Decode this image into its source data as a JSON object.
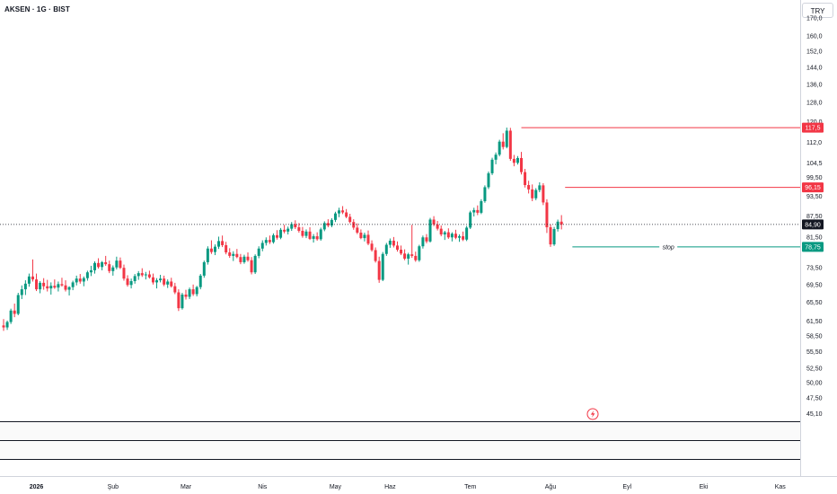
{
  "header": {
    "symbol_title": "AKSEN · 1G · BIST",
    "currency": "TRY"
  },
  "chart_data": {
    "type": "candlestick",
    "y_scale": "log",
    "ylim": [
      44.0,
      176.0
    ],
    "y_ticks": [
      "170,0",
      "160,0",
      "152,0",
      "144,0",
      "136,0",
      "128,0",
      "120,0",
      "112,0",
      "104,5",
      "99,50",
      "93,50",
      "87,50",
      "81,50",
      "73,50",
      "69,50",
      "65,50",
      "61,50",
      "58,50",
      "55,50",
      "52,50",
      "50,00",
      "47,50",
      "45,10"
    ],
    "x_ticks": [
      {
        "label": "2026",
        "index": 9
      },
      {
        "label": "Şub",
        "index": 30
      },
      {
        "label": "Mar",
        "index": 50
      },
      {
        "label": "Nis",
        "index": 71
      },
      {
        "label": "May",
        "index": 91
      },
      {
        "label": "Haz",
        "index": 106
      },
      {
        "label": "Tem",
        "index": 128
      },
      {
        "label": "Ağu",
        "index": 150
      },
      {
        "label": "Eyl",
        "index": 171
      },
      {
        "label": "Eki",
        "index": 192
      },
      {
        "label": "Kas",
        "index": 213
      }
    ],
    "current_price": {
      "label": "84,90",
      "value": 84.9
    },
    "levels": [
      {
        "label": "117,5",
        "value": 117.5,
        "color": "#f23645",
        "start_index": 142
      },
      {
        "label": "96,15",
        "value": 96.15,
        "color": "#f23645",
        "start_index": 154
      },
      {
        "label": "78,75",
        "value": 78.75,
        "color": "#089981",
        "start_index": 156,
        "text": "stop"
      }
    ],
    "up_color": "#089981",
    "down_color": "#f23645",
    "candles": [
      [
        60.5,
        61.8,
        59.4,
        60.1
      ],
      [
        60.1,
        61.5,
        59.6,
        61.2
      ],
      [
        61.2,
        64.0,
        60.8,
        63.6
      ],
      [
        63.6,
        65.1,
        62.2,
        62.9
      ],
      [
        62.9,
        67.5,
        62.6,
        67.0
      ],
      [
        67.0,
        69.2,
        66.1,
        68.3
      ],
      [
        68.3,
        70.4,
        67.0,
        69.6
      ],
      [
        69.6,
        72.0,
        68.9,
        71.3
      ],
      [
        71.3,
        75.5,
        70.1,
        70.6
      ],
      [
        70.6,
        72.0,
        67.9,
        68.3
      ],
      [
        68.3,
        70.2,
        67.4,
        69.8
      ],
      [
        69.8,
        70.9,
        68.2,
        69.0
      ],
      [
        69.0,
        70.5,
        67.8,
        68.5
      ],
      [
        68.5,
        69.9,
        67.1,
        69.1
      ],
      [
        69.1,
        70.6,
        68.4,
        68.7
      ],
      [
        68.7,
        70.1,
        67.8,
        69.5
      ],
      [
        69.5,
        71.0,
        68.9,
        69.2
      ],
      [
        69.2,
        70.4,
        67.8,
        68.2
      ],
      [
        68.2,
        69.0,
        66.9,
        68.8
      ],
      [
        68.8,
        70.3,
        68.1,
        69.9
      ],
      [
        69.9,
        71.5,
        69.2,
        70.8
      ],
      [
        70.8,
        71.9,
        69.6,
        70.1
      ],
      [
        70.1,
        71.3,
        69.0,
        70.9
      ],
      [
        70.9,
        72.7,
        70.3,
        72.3
      ],
      [
        72.3,
        73.9,
        71.4,
        72.8
      ],
      [
        72.8,
        75.0,
        72.0,
        74.6
      ],
      [
        74.6,
        75.8,
        73.2,
        73.6
      ],
      [
        73.6,
        75.1,
        72.8,
        74.8
      ],
      [
        74.8,
        76.4,
        73.9,
        74.3
      ],
      [
        74.3,
        75.2,
        72.1,
        72.6
      ],
      [
        72.6,
        74.0,
        71.5,
        73.5
      ],
      [
        73.5,
        76.2,
        73.0,
        75.2
      ],
      [
        75.2,
        76.0,
        73.1,
        73.4
      ],
      [
        73.4,
        74.2,
        70.3,
        70.8
      ],
      [
        70.8,
        71.6,
        68.9,
        69.3
      ],
      [
        69.3,
        70.8,
        68.5,
        70.2
      ],
      [
        70.2,
        71.9,
        69.6,
        71.4
      ],
      [
        71.4,
        72.6,
        70.5,
        72.1
      ],
      [
        72.1,
        73.3,
        71.2,
        71.6
      ],
      [
        71.6,
        72.4,
        70.6,
        71.8
      ],
      [
        71.8,
        72.7,
        70.8,
        71.1
      ],
      [
        71.1,
        72.0,
        69.4,
        69.9
      ],
      [
        69.9,
        70.9,
        68.5,
        70.4
      ],
      [
        70.4,
        71.7,
        69.9,
        70.8
      ],
      [
        70.8,
        71.5,
        69.0,
        69.4
      ],
      [
        69.4,
        70.6,
        68.6,
        70.1
      ],
      [
        70.1,
        71.0,
        68.7,
        69.0
      ],
      [
        69.0,
        69.8,
        67.2,
        67.6
      ],
      [
        67.6,
        68.3,
        63.5,
        64.1
      ],
      [
        64.1,
        67.5,
        63.8,
        67.1
      ],
      [
        67.1,
        68.2,
        66.0,
        66.6
      ],
      [
        66.6,
        68.7,
        66.1,
        68.3
      ],
      [
        68.3,
        69.4,
        66.8,
        67.2
      ],
      [
        67.2,
        69.1,
        66.7,
        68.8
      ],
      [
        68.8,
        71.9,
        68.3,
        71.5
      ],
      [
        71.5,
        75.2,
        71.0,
        74.8
      ],
      [
        74.8,
        78.9,
        74.2,
        78.3
      ],
      [
        78.3,
        80.5,
        76.9,
        77.4
      ],
      [
        77.4,
        79.4,
        76.6,
        78.8
      ],
      [
        78.8,
        81.5,
        78.2,
        80.3
      ],
      [
        80.3,
        81.8,
        78.7,
        79.2
      ],
      [
        79.2,
        80.1,
        76.8,
        77.3
      ],
      [
        77.3,
        78.4,
        75.9,
        76.4
      ],
      [
        76.4,
        77.6,
        75.1,
        76.9
      ],
      [
        76.9,
        78.2,
        75.8,
        76.1
      ],
      [
        76.1,
        76.9,
        74.3,
        74.8
      ],
      [
        74.8,
        76.7,
        74.4,
        76.2
      ],
      [
        76.2,
        77.3,
        74.9,
        75.3
      ],
      [
        75.3,
        76.1,
        71.8,
        72.3
      ],
      [
        72.3,
        76.8,
        71.9,
        76.4
      ],
      [
        76.4,
        78.9,
        75.8,
        78.3
      ],
      [
        78.3,
        80.5,
        77.6,
        79.8
      ],
      [
        79.8,
        81.3,
        79.1,
        80.6
      ],
      [
        80.6,
        81.8,
        79.5,
        80.0
      ],
      [
        80.0,
        82.4,
        79.6,
        81.9
      ],
      [
        81.9,
        83.3,
        80.7,
        81.2
      ],
      [
        81.2,
        83.9,
        80.8,
        83.4
      ],
      [
        83.4,
        84.8,
        82.4,
        82.9
      ],
      [
        82.9,
        84.3,
        82.1,
        83.7
      ],
      [
        83.7,
        85.6,
        83.1,
        85.0
      ],
      [
        85.0,
        86.1,
        83.6,
        84.1
      ],
      [
        84.1,
        85.3,
        82.6,
        83.1
      ],
      [
        83.1,
        84.2,
        81.2,
        81.7
      ],
      [
        81.7,
        83.5,
        81.1,
        82.9
      ],
      [
        82.9,
        84.1,
        80.6,
        80.9
      ],
      [
        80.9,
        82.2,
        79.9,
        81.6
      ],
      [
        81.6,
        82.7,
        80.4,
        80.8
      ],
      [
        80.8,
        84.0,
        80.4,
        83.5
      ],
      [
        83.5,
        85.8,
        83.0,
        85.3
      ],
      [
        85.3,
        86.4,
        84.1,
        84.6
      ],
      [
        84.6,
        86.7,
        84.1,
        86.2
      ],
      [
        86.2,
        88.6,
        85.6,
        88.1
      ],
      [
        88.1,
        89.8,
        87.0,
        89.0
      ],
      [
        89.0,
        90.3,
        87.9,
        88.4
      ],
      [
        88.4,
        89.4,
        86.7,
        87.1
      ],
      [
        87.1,
        88.0,
        85.2,
        85.6
      ],
      [
        85.6,
        86.4,
        83.4,
        84.0
      ],
      [
        84.0,
        85.2,
        82.2,
        82.6
      ],
      [
        82.6,
        83.5,
        80.8,
        81.1
      ],
      [
        81.1,
        82.6,
        80.2,
        82.0
      ],
      [
        82.0,
        83.2,
        79.2,
        79.6
      ],
      [
        79.6,
        80.5,
        77.5,
        77.9
      ],
      [
        77.9,
        78.6,
        74.7,
        75.1
      ],
      [
        75.1,
        76.2,
        69.8,
        70.5
      ],
      [
        70.5,
        77.4,
        70.2,
        76.9
      ],
      [
        76.9,
        79.8,
        76.4,
        79.3
      ],
      [
        79.3,
        81.0,
        78.5,
        80.4
      ],
      [
        80.4,
        81.4,
        78.6,
        79.1
      ],
      [
        79.1,
        80.2,
        77.5,
        78.0
      ],
      [
        78.0,
        79.1,
        76.6,
        77.0
      ],
      [
        77.0,
        78.1,
        75.3,
        75.7
      ],
      [
        75.7,
        77.2,
        74.2,
        76.8
      ],
      [
        76.8,
        84.8,
        75.9,
        76.4
      ],
      [
        76.4,
        77.5,
        74.9,
        75.3
      ],
      [
        75.3,
        79.3,
        74.9,
        78.9
      ],
      [
        78.9,
        81.8,
        78.3,
        81.3
      ],
      [
        81.3,
        82.2,
        79.7,
        80.2
      ],
      [
        80.2,
        86.8,
        79.9,
        86.3
      ],
      [
        86.3,
        87.3,
        84.4,
        84.9
      ],
      [
        84.9,
        85.9,
        83.2,
        83.7
      ],
      [
        83.7,
        84.6,
        81.6,
        82.1
      ],
      [
        82.1,
        83.1,
        80.6,
        82.7
      ],
      [
        82.7,
        83.8,
        80.9,
        81.3
      ],
      [
        81.3,
        82.7,
        80.2,
        82.3
      ],
      [
        82.3,
        83.4,
        80.8,
        81.2
      ],
      [
        81.2,
        82.1,
        80.1,
        81.6
      ],
      [
        81.6,
        82.9,
        80.3,
        80.7
      ],
      [
        80.7,
        84.5,
        80.3,
        84.0
      ],
      [
        84.0,
        88.9,
        83.6,
        88.4
      ],
      [
        88.4,
        89.8,
        87.2,
        89.1
      ],
      [
        89.1,
        90.5,
        87.6,
        88.3
      ],
      [
        88.3,
        92.4,
        87.9,
        91.8
      ],
      [
        91.8,
        96.8,
        91.3,
        96.2
      ],
      [
        96.2,
        101.4,
        95.6,
        100.8
      ],
      [
        100.8,
        106.2,
        100.2,
        105.5
      ],
      [
        105.5,
        108.1,
        103.9,
        107.3
      ],
      [
        107.3,
        112.8,
        106.7,
        112.1
      ],
      [
        112.1,
        115.3,
        109.2,
        110.1
      ],
      [
        110.1,
        117.5,
        109.6,
        116.3
      ],
      [
        116.3,
        117.4,
        105.1,
        105.8
      ],
      [
        105.8,
        107.2,
        103.2,
        104.4
      ],
      [
        104.4,
        106.8,
        103.8,
        106.1
      ],
      [
        106.1,
        108.3,
        100.4,
        101.2
      ],
      [
        101.2,
        102.3,
        96.1,
        96.9
      ],
      [
        96.9,
        98.3,
        94.2,
        95.5
      ],
      [
        95.5,
        97.1,
        91.8,
        92.7
      ],
      [
        92.7,
        95.9,
        92.1,
        95.3
      ],
      [
        95.3,
        97.8,
        94.6,
        96.8
      ],
      [
        96.8,
        97.5,
        90.6,
        91.4
      ],
      [
        91.4,
        92.4,
        82.5,
        84.1
      ],
      [
        84.1,
        84.9,
        78.75,
        79.4
      ],
      [
        79.4,
        84.2,
        79.0,
        83.6
      ],
      [
        83.6,
        86.3,
        82.9,
        85.7
      ],
      [
        85.7,
        87.6,
        83.5,
        84.9
      ]
    ]
  }
}
